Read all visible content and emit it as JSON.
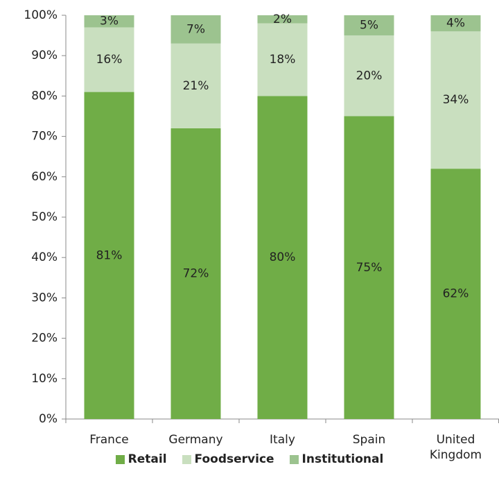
{
  "chart_data": {
    "type": "stacked_bar",
    "categories": [
      "France",
      "Germany",
      "Italy",
      "Spain",
      "United Kingdom"
    ],
    "series": [
      {
        "name": "Retail",
        "color": "#70ad47",
        "values": [
          81,
          72,
          80,
          75,
          62
        ],
        "value_labels": [
          "81%",
          "72%",
          "80%",
          "75%",
          "62%"
        ]
      },
      {
        "name": "Foodservice",
        "color": "#c9dfbf",
        "values": [
          16,
          21,
          18,
          20,
          34
        ],
        "value_labels": [
          "16%",
          "21%",
          "18%",
          "20%",
          "34%"
        ]
      },
      {
        "name": "Institutional",
        "color": "#9cc38f",
        "values": [
          3,
          7,
          2,
          5,
          4
        ],
        "value_labels": [
          "3%",
          "7%",
          "2%",
          "5%",
          "4%"
        ]
      }
    ],
    "ylim": [
      0,
      100
    ],
    "yticks": [
      {
        "value": 0,
        "label": "0%"
      },
      {
        "value": 10,
        "label": "10%"
      },
      {
        "value": 20,
        "label": "20%"
      },
      {
        "value": 30,
        "label": "30%"
      },
      {
        "value": 40,
        "label": "40%"
      },
      {
        "value": 50,
        "label": "50%"
      },
      {
        "value": 60,
        "label": "60%"
      },
      {
        "value": 70,
        "label": "70%"
      },
      {
        "value": 80,
        "label": "80%"
      },
      {
        "value": 90,
        "label": "90%"
      },
      {
        "value": 100,
        "label": "100%"
      }
    ],
    "grid": false,
    "legend": "bottom"
  }
}
